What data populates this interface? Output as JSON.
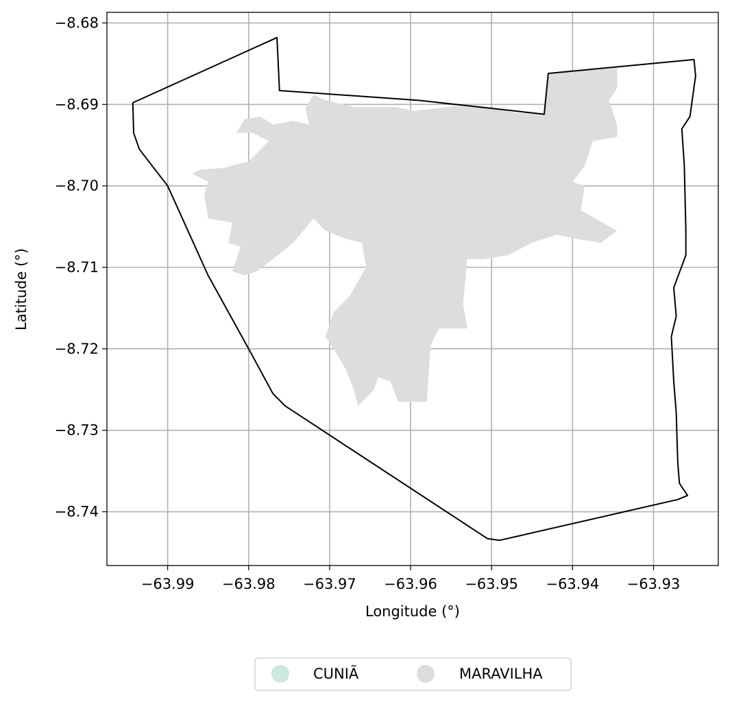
{
  "chart_data": {
    "type": "map",
    "xlabel": "Longitude (°)",
    "ylabel": "Latitude (°)",
    "xlim": [
      -63.9975,
      -63.922
    ],
    "ylim": [
      -8.7466,
      -8.6787
    ],
    "xticks": [
      -63.99,
      -63.98,
      -63.97,
      -63.96,
      -63.95,
      -63.94,
      -63.93
    ],
    "xtick_labels": [
      "−63.99",
      "−63.98",
      "−63.97",
      "−63.96",
      "−63.95",
      "−63.94",
      "−63.93"
    ],
    "yticks": [
      -8.68,
      -8.69,
      -8.7,
      -8.71,
      -8.72,
      -8.73,
      -8.74
    ],
    "ytick_labels": [
      "−8.68",
      "−8.69",
      "−8.70",
      "−8.71",
      "−8.72",
      "−8.73",
      "−8.74"
    ],
    "grid": true,
    "legend_position": "bottom-center",
    "legend": [
      {
        "label": "CUNIÃ",
        "color": "#cde8dc"
      },
      {
        "label": "MARAVILHA",
        "color": "#dddddd"
      }
    ],
    "boundary_color": "#000000",
    "boundary": [
      [
        -63.9943,
        -8.6898
      ],
      [
        -63.9765,
        -8.6818
      ],
      [
        -63.9763,
        -8.686
      ],
      [
        -63.9762,
        -8.6883
      ],
      [
        -63.959,
        -8.6895
      ],
      [
        -63.9435,
        -8.6912
      ],
      [
        -63.943,
        -8.6862
      ],
      [
        -63.925,
        -8.6845
      ],
      [
        -63.9248,
        -8.6865
      ],
      [
        -63.9255,
        -8.6915
      ],
      [
        -63.9265,
        -8.693
      ],
      [
        -63.9262,
        -8.6975
      ],
      [
        -63.926,
        -8.7055
      ],
      [
        -63.926,
        -8.7085
      ],
      [
        -63.9275,
        -8.7125
      ],
      [
        -63.9272,
        -8.716
      ],
      [
        -63.9278,
        -8.7185
      ],
      [
        -63.9275,
        -8.724
      ],
      [
        -63.9272,
        -8.7278
      ],
      [
        -63.927,
        -8.734
      ],
      [
        -63.9268,
        -8.7365
      ],
      [
        -63.9258,
        -8.738
      ],
      [
        -63.927,
        -8.7385
      ],
      [
        -63.949,
        -8.7435
      ],
      [
        -63.9505,
        -8.7433
      ],
      [
        -63.9755,
        -8.727
      ],
      [
        -63.977,
        -8.7255
      ],
      [
        -63.98,
        -8.72
      ],
      [
        -63.985,
        -8.711
      ],
      [
        -63.99,
        -8.7
      ],
      [
        -63.9935,
        -8.6955
      ],
      [
        -63.9942,
        -8.6935
      ],
      [
        -63.9943,
        -8.6898
      ]
    ],
    "regions": [
      {
        "name": "MARAVILHA",
        "color": "#dddddd",
        "polygon": [
          [
            -63.943,
            -8.6862
          ],
          [
            -63.9345,
            -8.6855
          ],
          [
            -63.9345,
            -8.688
          ],
          [
            -63.9355,
            -8.6895
          ],
          [
            -63.9345,
            -8.6925
          ],
          [
            -63.9345,
            -8.694
          ],
          [
            -63.9375,
            -8.6945
          ],
          [
            -63.9385,
            -8.6975
          ],
          [
            -63.94,
            -8.6995
          ],
          [
            -63.9385,
            -8.7
          ],
          [
            -63.939,
            -8.703
          ],
          [
            -63.9345,
            -8.7055
          ],
          [
            -63.9365,
            -8.707
          ],
          [
            -63.9395,
            -8.7065
          ],
          [
            -63.942,
            -8.706
          ],
          [
            -63.945,
            -8.707
          ],
          [
            -63.948,
            -8.7085
          ],
          [
            -63.951,
            -8.709
          ],
          [
            -63.953,
            -8.709
          ],
          [
            -63.9535,
            -8.7145
          ],
          [
            -63.953,
            -8.7175
          ],
          [
            -63.9565,
            -8.7175
          ],
          [
            -63.9575,
            -8.7195
          ],
          [
            -63.958,
            -8.7265
          ],
          [
            -63.9615,
            -8.7265
          ],
          [
            -63.9625,
            -8.724
          ],
          [
            -63.964,
            -8.7235
          ],
          [
            -63.9645,
            -8.725
          ],
          [
            -63.9665,
            -8.727
          ],
          [
            -63.967,
            -8.725
          ],
          [
            -63.968,
            -8.7225
          ],
          [
            -63.9695,
            -8.72
          ],
          [
            -63.9705,
            -8.7185
          ],
          [
            -63.9695,
            -8.7155
          ],
          [
            -63.9675,
            -8.7135
          ],
          [
            -63.9655,
            -8.71
          ],
          [
            -63.966,
            -8.707
          ],
          [
            -63.968,
            -8.7065
          ],
          [
            -63.9705,
            -8.7055
          ],
          [
            -63.972,
            -8.704
          ],
          [
            -63.9745,
            -8.707
          ],
          [
            -63.977,
            -8.709
          ],
          [
            -63.979,
            -8.7105
          ],
          [
            -63.9805,
            -8.711
          ],
          [
            -63.982,
            -8.7105
          ],
          [
            -63.981,
            -8.7075
          ],
          [
            -63.9825,
            -8.707
          ],
          [
            -63.982,
            -8.7045
          ],
          [
            -63.985,
            -8.704
          ],
          [
            -63.9855,
            -8.701
          ],
          [
            -63.985,
            -8.6995
          ],
          [
            -63.987,
            -8.6985
          ],
          [
            -63.986,
            -8.698
          ],
          [
            -63.983,
            -8.6978
          ],
          [
            -63.982,
            -8.6975
          ],
          [
            -63.98,
            -8.697
          ],
          [
            -63.979,
            -8.696
          ],
          [
            -63.9775,
            -8.6945
          ],
          [
            -63.9795,
            -8.6935
          ],
          [
            -63.9815,
            -8.6935
          ],
          [
            -63.9805,
            -8.6918
          ],
          [
            -63.9785,
            -8.6915
          ],
          [
            -63.977,
            -8.6925
          ],
          [
            -63.9745,
            -8.692
          ],
          [
            -63.9725,
            -8.6925
          ],
          [
            -63.973,
            -8.6905
          ],
          [
            -63.972,
            -8.6888
          ],
          [
            -63.9705,
            -8.6895
          ],
          [
            -63.967,
            -8.6903
          ],
          [
            -63.962,
            -8.6903
          ],
          [
            -63.9595,
            -8.6908
          ],
          [
            -63.9545,
            -8.6902
          ],
          [
            -63.95,
            -8.6905
          ],
          [
            -63.947,
            -8.691
          ],
          [
            -63.9435,
            -8.6912
          ]
        ]
      }
    ]
  }
}
